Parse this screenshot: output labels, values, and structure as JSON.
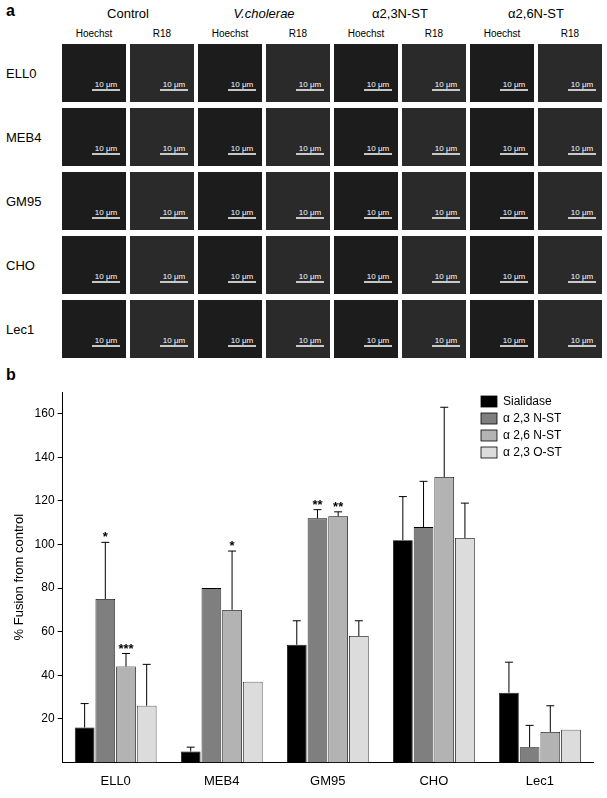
{
  "panel_a": {
    "label": "a",
    "columns": [
      "Control",
      "V.cholerae",
      "α2,3N-ST",
      "α2,6N-ST"
    ],
    "channels": [
      "Hoechst",
      "R18"
    ],
    "rows": [
      "ELL0",
      "MEB4",
      "GM95",
      "CHO",
      "Lec1"
    ],
    "scale_bar": "10 μm"
  },
  "panel_b": {
    "label": "b"
  },
  "chart_data": {
    "type": "bar",
    "y_label": "% Fusion from control",
    "categories": [
      "ELL0",
      "MEB4",
      "GM95",
      "CHO",
      "Lec1"
    ],
    "series": [
      {
        "name": "Sialidase",
        "color": "#000000",
        "values": [
          16,
          5,
          54,
          102,
          32
        ],
        "errors": [
          11,
          2,
          11,
          20,
          14
        ],
        "significance": [
          null,
          null,
          null,
          null,
          null
        ]
      },
      {
        "name": "α 2,3 N-ST",
        "color": "#7f7f7f",
        "values": [
          75,
          80,
          112,
          108,
          7
        ],
        "errors": [
          26,
          null,
          4,
          21,
          10
        ],
        "significance": [
          "*",
          null,
          "**",
          null,
          null
        ]
      },
      {
        "name": "α 2,6 N-ST",
        "color": "#b3b3b3",
        "values": [
          44,
          70,
          113,
          131,
          14
        ],
        "errors": [
          6,
          27,
          2,
          32,
          12
        ],
        "significance": [
          "***",
          "*",
          "**",
          null,
          null
        ]
      },
      {
        "name": "α 2,3 O-ST",
        "color": "#dcdcdc",
        "values": [
          26,
          37,
          58,
          103,
          15
        ],
        "errors": [
          19,
          null,
          7,
          16,
          null
        ],
        "significance": [
          null,
          null,
          null,
          null,
          null
        ]
      }
    ],
    "ylim": [
      0,
      170
    ],
    "yticks": [
      20,
      40,
      60,
      80,
      100,
      120,
      140,
      160
    ],
    "grid": false,
    "legend": "upper right"
  }
}
